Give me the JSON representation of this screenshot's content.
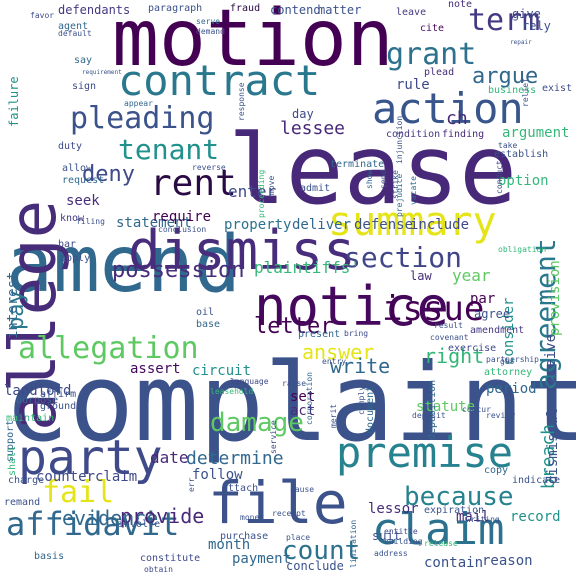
{
  "words": [
    {
      "text": "complaint",
      "color": "#3b528b"
    },
    {
      "text": "lease",
      "color": "#482878"
    },
    {
      "text": "motion",
      "color": "#440154"
    },
    {
      "text": "amend",
      "color": "#31688e"
    },
    {
      "text": "notice",
      "color": "#46085c"
    },
    {
      "text": "dismiss",
      "color": "#472d7b"
    },
    {
      "text": "allege",
      "color": "#472c7a"
    },
    {
      "text": "contract",
      "color": "#2a788e"
    },
    {
      "text": "action",
      "color": "#39568c"
    },
    {
      "text": "party",
      "color": "#3e4a89"
    },
    {
      "text": "file",
      "color": "#3b528b"
    },
    {
      "text": "premise",
      "color": "#26828e"
    },
    {
      "text": "claim",
      "color": "#2c728e"
    },
    {
      "text": "summary",
      "color": "#e5e419"
    },
    {
      "text": "rent",
      "color": "#2a0a44"
    },
    {
      "text": "agreement",
      "color": "#2a788e"
    },
    {
      "text": "pleading",
      "color": "#3b528b"
    },
    {
      "text": "term",
      "color": "#443983"
    },
    {
      "text": "grant",
      "color": "#2c728e"
    },
    {
      "text": "allegation",
      "color": "#5ec962"
    },
    {
      "text": "tenant",
      "color": "#21918c"
    },
    {
      "text": "section",
      "color": "#404688"
    },
    {
      "text": "issue",
      "color": "#440154"
    },
    {
      "text": "affidavit",
      "color": "#31688e"
    },
    {
      "text": "because",
      "color": "#26828e"
    },
    {
      "text": "count",
      "color": "#2c728e"
    },
    {
      "text": "damage",
      "color": "#5ec962"
    },
    {
      "text": "fail",
      "color": "#e5e419"
    },
    {
      "text": "letter",
      "color": "#440154"
    },
    {
      "text": "pay",
      "color": "#2a788e"
    },
    {
      "text": "deny",
      "color": "#3e4a89"
    },
    {
      "text": "possession",
      "color": "#472d7b"
    },
    {
      "text": "argue",
      "color": "#31688e"
    },
    {
      "text": "evidence",
      "color": "#31688e"
    },
    {
      "text": "provide",
      "color": "#482878"
    },
    {
      "text": "answer",
      "color": "#e5e419"
    },
    {
      "text": "write",
      "color": "#31688e"
    },
    {
      "text": "right",
      "color": "#35b779"
    },
    {
      "text": "breach",
      "color": "#21918c"
    },
    {
      "text": "year",
      "color": "#5ec962"
    },
    {
      "text": "plaintiffs'",
      "color": "#35b779"
    },
    {
      "text": "ch",
      "color": "#482878"
    },
    {
      "text": "enter",
      "color": "#3e4a89"
    },
    {
      "text": "determine",
      "color": "#31688e"
    },
    {
      "text": "date",
      "color": "#482878"
    },
    {
      "text": "counterclaim",
      "color": "#3e4a89"
    },
    {
      "text": "follow",
      "color": "#3b528b"
    },
    {
      "text": "assert",
      "color": "#46085c"
    },
    {
      "text": "circuit",
      "color": "#21918c"
    },
    {
      "text": "landlord",
      "color": "#3e4a89"
    },
    {
      "text": "interest",
      "color": "#31688e"
    },
    {
      "text": "month",
      "color": "#31688e"
    },
    {
      "text": "payment",
      "color": "#31688e"
    },
    {
      "text": "conclude",
      "color": "#3b528b"
    },
    {
      "text": "contain",
      "color": "#3b528b"
    },
    {
      "text": "reason",
      "color": "#3b528b"
    },
    {
      "text": "record",
      "color": "#21918c"
    },
    {
      "text": "mail",
      "color": "#472c7a"
    },
    {
      "text": "suit",
      "color": "#3b528b"
    },
    {
      "text": "lessor",
      "color": "#472d7b"
    },
    {
      "text": "lessee",
      "color": "#482878"
    },
    {
      "text": "statement",
      "color": "#31688e"
    },
    {
      "text": "require",
      "color": "#440154"
    },
    {
      "text": "property",
      "color": "#2c728e"
    },
    {
      "text": "deliver",
      "color": "#31688e"
    },
    {
      "text": "defense",
      "color": "#3b528b"
    },
    {
      "text": "include",
      "color": "#3e4a89"
    },
    {
      "text": "seek",
      "color": "#472d7b"
    },
    {
      "text": "rule",
      "color": "#3e4a89"
    },
    {
      "text": "option",
      "color": "#35b779"
    },
    {
      "text": "argument",
      "color": "#35b779"
    },
    {
      "text": "period",
      "color": "#31688e"
    },
    {
      "text": "set",
      "color": "#440154"
    },
    {
      "text": "act",
      "color": "#472d7b"
    },
    {
      "text": "statute",
      "color": "#5ec962"
    },
    {
      "text": "dismissal",
      "color": "#3b528b"
    },
    {
      "text": "receive",
      "color": "#3e4a89"
    },
    {
      "text": "provision",
      "color": "#5ec962"
    },
    {
      "text": "consider",
      "color": "#21918c"
    },
    {
      "text": "agree",
      "color": "#3b528b"
    },
    {
      "text": "par",
      "color": "#440154"
    },
    {
      "text": "law",
      "color": "#472c7a"
    },
    {
      "text": "defendants",
      "color": "#443983"
    },
    {
      "text": "paragraph",
      "color": "#3b528b"
    },
    {
      "text": "fraud",
      "color": "#2a0a44"
    },
    {
      "text": "contend",
      "color": "#3b528b"
    },
    {
      "text": "matter",
      "color": "#3b528b"
    },
    {
      "text": "note",
      "color": "#472d7b"
    },
    {
      "text": "give",
      "color": "#3e4a89"
    },
    {
      "text": "leave",
      "color": "#443983"
    },
    {
      "text": "cite",
      "color": "#46085c"
    },
    {
      "text": "rely",
      "color": "#3b528b"
    },
    {
      "text": "agent",
      "color": "#31688e"
    },
    {
      "text": "say",
      "color": "#31688e"
    },
    {
      "text": "sign",
      "color": "#3e4a89"
    },
    {
      "text": "plead",
      "color": "#472c7a"
    },
    {
      "text": "exist",
      "color": "#3e4a89"
    },
    {
      "text": "business",
      "color": "#35b779"
    },
    {
      "text": "failure",
      "color": "#21918c"
    },
    {
      "text": "duty",
      "color": "#3e4a89"
    },
    {
      "text": "allow",
      "color": "#3b528b"
    },
    {
      "text": "request",
      "color": "#31688e"
    },
    {
      "text": "know",
      "color": "#443983"
    },
    {
      "text": "bar",
      "color": "#3e4a89"
    },
    {
      "text": "apply",
      "color": "#3b528b"
    },
    {
      "text": "condition",
      "color": "#443983"
    },
    {
      "text": "finding",
      "color": "#482878"
    },
    {
      "text": "establish",
      "color": "#3b528b"
    },
    {
      "text": "terminate",
      "color": "#31688e"
    },
    {
      "text": "admit",
      "color": "#3b528b"
    },
    {
      "text": "day",
      "color": "#3e4a89"
    },
    {
      "text": "present",
      "color": "#31688e"
    },
    {
      "text": "amendment",
      "color": "#443983"
    },
    {
      "text": "oil",
      "color": "#3b528b"
    },
    {
      "text": "base",
      "color": "#31688e"
    },
    {
      "text": "support",
      "color": "#31688e"
    },
    {
      "text": "affirm",
      "color": "#3b528b"
    },
    {
      "text": "ground",
      "color": "#3b528b"
    },
    {
      "text": "shall",
      "color": "#35b779"
    },
    {
      "text": "language",
      "color": "#3e4a89"
    },
    {
      "text": "raise",
      "color": "#3b528b"
    },
    {
      "text": "document",
      "color": "#31688e"
    },
    {
      "text": "deposition",
      "color": "#31688e"
    },
    {
      "text": "review",
      "color": "#3b528b"
    },
    {
      "text": "partnership",
      "color": "#3b528b"
    },
    {
      "text": "exercise",
      "color": "#3e4a89"
    },
    {
      "text": "attorney",
      "color": "#35b779"
    },
    {
      "text": "deposit",
      "color": "#3b528b"
    },
    {
      "text": "service",
      "color": "#3e4a89"
    },
    {
      "text": "expiration",
      "color": "#3b528b"
    },
    {
      "text": "building",
      "color": "#3b528b"
    },
    {
      "text": "copy",
      "color": "#31688e"
    },
    {
      "text": "indicate",
      "color": "#3b528b"
    },
    {
      "text": "entitle",
      "color": "#3e4a89"
    },
    {
      "text": "maintain",
      "color": "#35b779"
    },
    {
      "text": "purpose",
      "color": "#31688e"
    },
    {
      "text": "remand",
      "color": "#3b528b"
    },
    {
      "text": "charge",
      "color": "#3b528b"
    },
    {
      "text": "basis",
      "color": "#31688e"
    },
    {
      "text": "constitute",
      "color": "#3e4a89"
    },
    {
      "text": "involve",
      "color": "#3b528b"
    },
    {
      "text": "purchase",
      "color": "#3b528b"
    },
    {
      "text": "attach",
      "color": "#3b528b"
    },
    {
      "text": "obtain",
      "color": "#3e4a89"
    },
    {
      "text": "release",
      "color": "#35b779"
    },
    {
      "text": "limitation",
      "color": "#31688e"
    },
    {
      "text": "injunction",
      "color": "#3b528b"
    },
    {
      "text": "strike",
      "color": "#3b528b"
    },
    {
      "text": "prejudice",
      "color": "#31688e"
    },
    {
      "text": "favor",
      "color": "#3e4a89"
    },
    {
      "text": "default",
      "color": "#3b528b"
    },
    {
      "text": "serve",
      "color": "#31688e"
    },
    {
      "text": "demand",
      "color": "#3b528b"
    },
    {
      "text": "appear",
      "color": "#31688e"
    },
    {
      "text": "proceeding",
      "color": "#35b779"
    },
    {
      "text": "move",
      "color": "#3b528b"
    },
    {
      "text": "show",
      "color": "#31688e"
    },
    {
      "text": "send",
      "color": "#3b528b"
    },
    {
      "text": "conduct",
      "color": "#3e4a89"
    },
    {
      "text": "take",
      "color": "#3b528b"
    },
    {
      "text": "relief",
      "color": "#3b528b"
    },
    {
      "text": "vacate",
      "color": "#31688e"
    },
    {
      "text": "reverse",
      "color": "#3b528b"
    },
    {
      "text": "conclusion",
      "color": "#3b528b"
    },
    {
      "text": "corporation",
      "color": "#31688e"
    },
    {
      "text": "merit",
      "color": "#3b528b"
    },
    {
      "text": "comply",
      "color": "#3b528b"
    },
    {
      "text": "entry",
      "color": "#3b528b"
    },
    {
      "text": "bring",
      "color": "#3e4a89"
    },
    {
      "text": "obligation",
      "color": "#35b779"
    },
    {
      "text": "covenant",
      "color": "#3b528b"
    },
    {
      "text": "result",
      "color": "#3b528b"
    },
    {
      "text": "gas",
      "color": "#3b528b"
    },
    {
      "text": "concur",
      "color": "#3b528b"
    },
    {
      "text": "cause",
      "color": "#3b528b"
    },
    {
      "text": "receipt",
      "color": "#3b528b"
    },
    {
      "text": "money",
      "color": "#3b528b"
    },
    {
      "text": "writing",
      "color": "#3b528b"
    },
    {
      "text": "address",
      "color": "#3b528b"
    },
    {
      "text": "place",
      "color": "#3b528b"
    },
    {
      "text": "err",
      "color": "#3b528b"
    },
    {
      "text": "leasehold",
      "color": "#35b779"
    },
    {
      "text": "filing",
      "color": "#3b528b"
    },
    {
      "text": "repair",
      "color": "#3b528b"
    },
    {
      "text": "requirement",
      "color": "#3b528b"
    },
    {
      "text": "response",
      "color": "#3b528b"
    },
    {
      "text": "return",
      "color": "#3b528b"
    }
  ]
}
